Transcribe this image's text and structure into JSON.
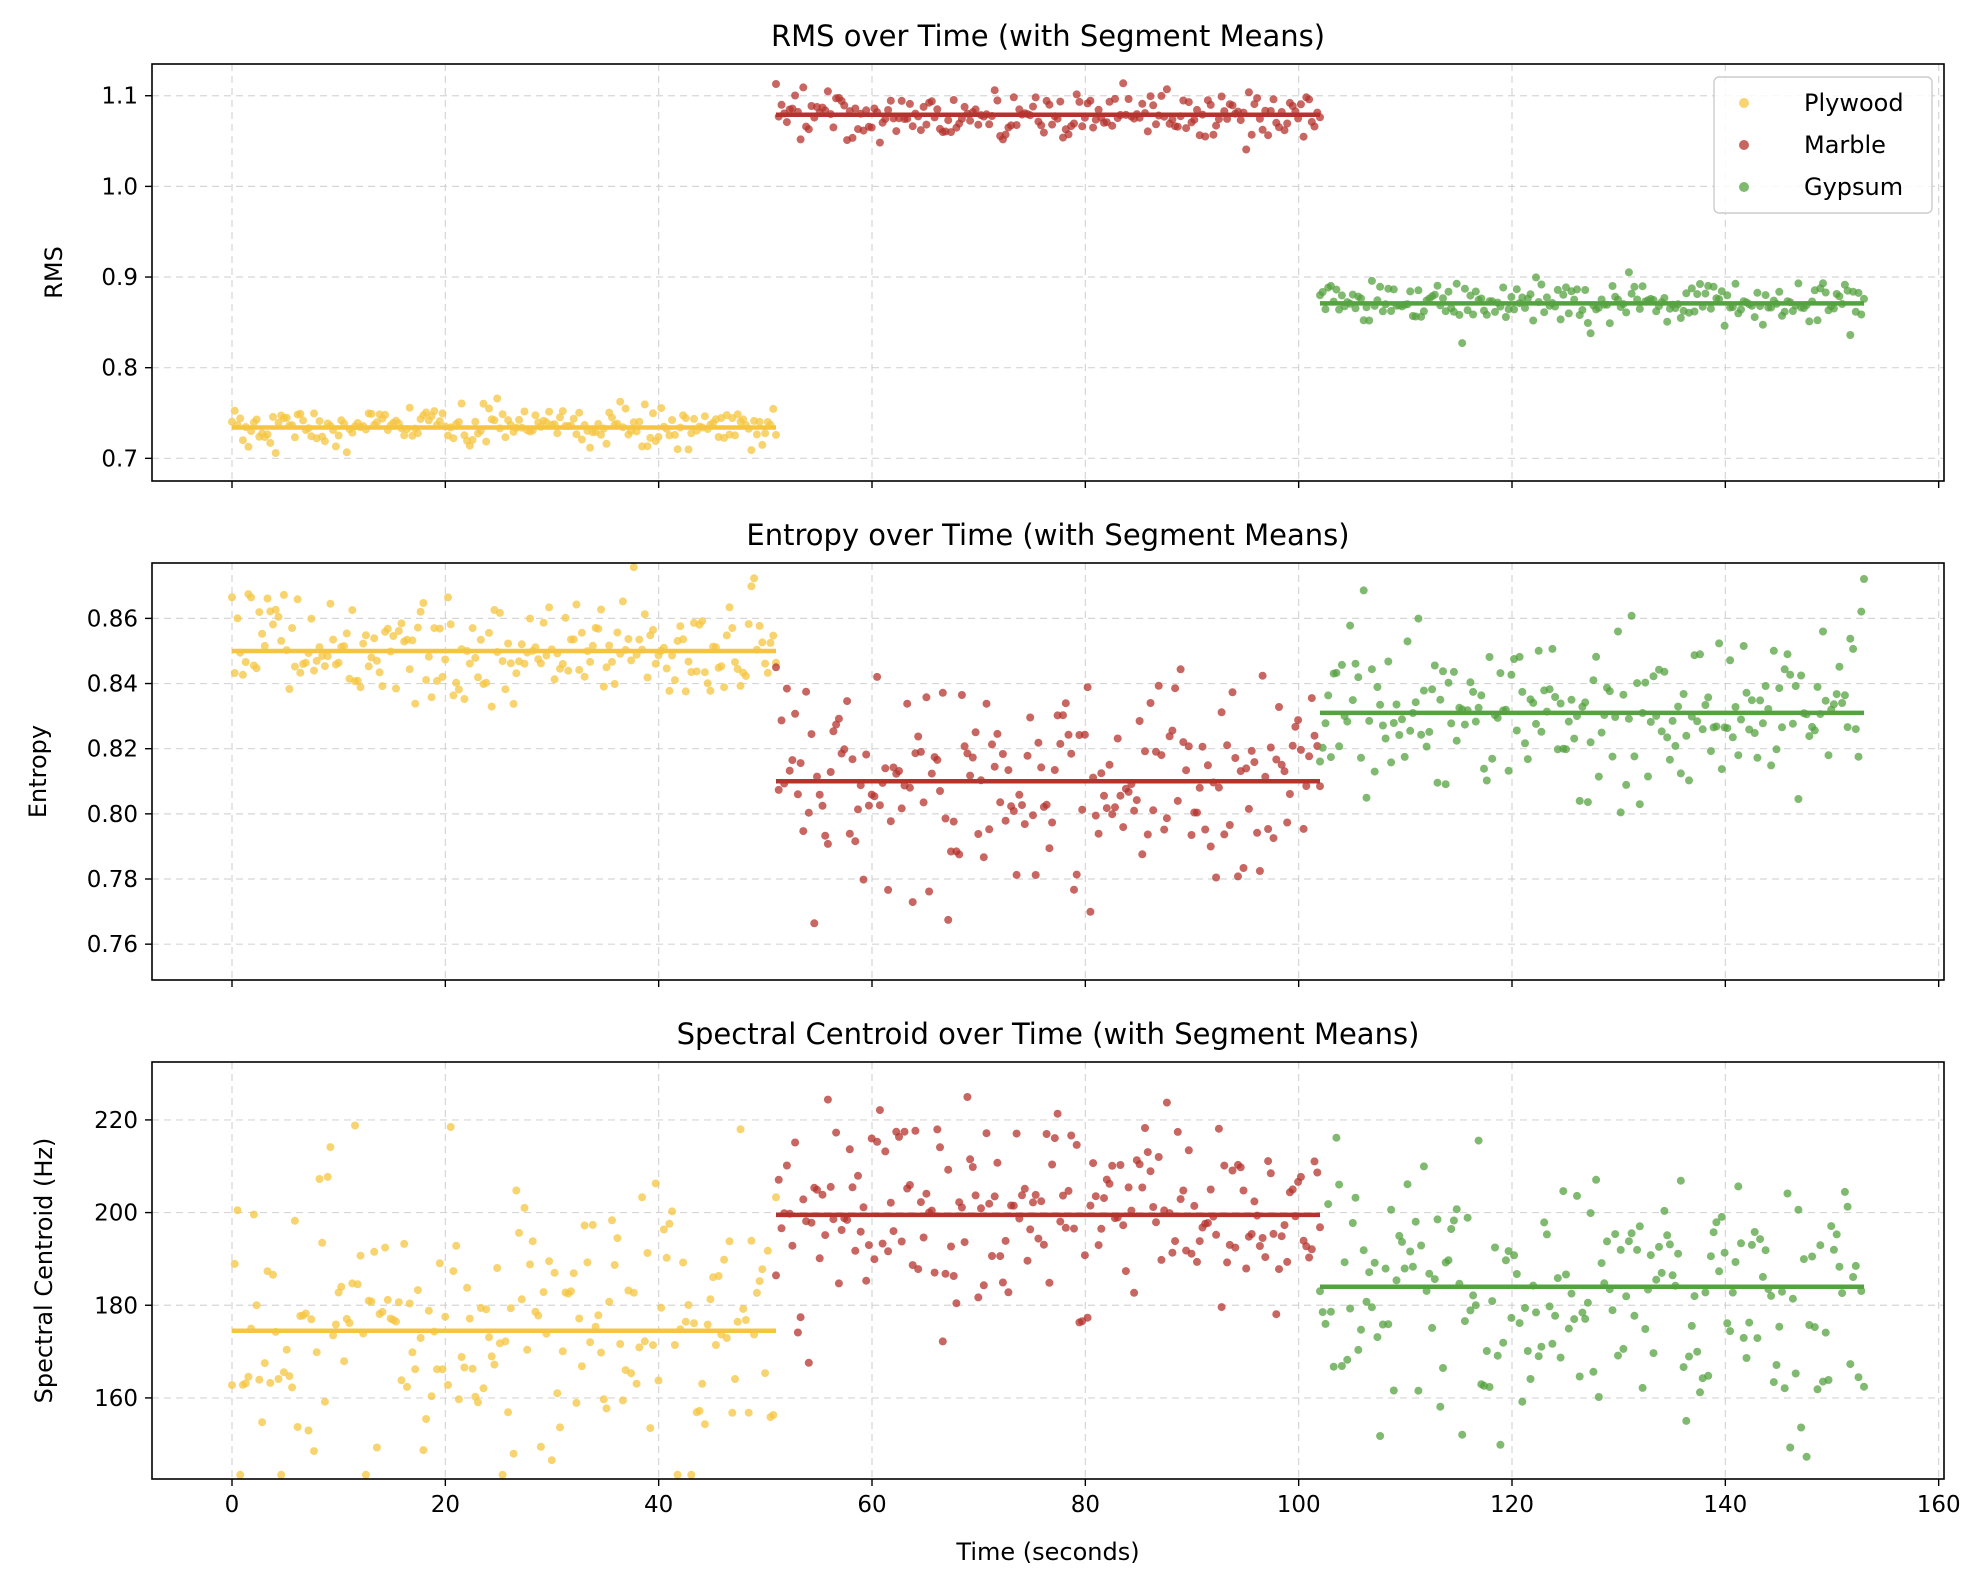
{
  "chart_data": {
    "type": "scatter",
    "layout": "3 stacked subplots sharing the x-axis",
    "x_axis": {
      "label": "Time (seconds)",
      "lim": [
        -7.5,
        160.5
      ],
      "ticks": [
        0,
        20,
        40,
        60,
        80,
        100,
        120,
        140,
        160
      ]
    },
    "segments": [
      {
        "name": "Plywood",
        "color": "#f5c542",
        "t_start": 0,
        "t_end": 51
      },
      {
        "name": "Marble",
        "color": "#b5332e",
        "t_start": 51,
        "t_end": 102
      },
      {
        "name": "Gypsum",
        "color": "#55a240",
        "t_start": 102,
        "t_end": 153
      }
    ],
    "legend": {
      "placement": "top-right of first subplot",
      "entries": [
        "Plywood",
        "Marble",
        "Gypsum"
      ]
    },
    "subplots": [
      {
        "title": "RMS over Time (with Segment Means)",
        "ylabel": "RMS",
        "ylim": [
          0.675,
          1.135
        ],
        "yticks": [
          0.7,
          0.8,
          0.9,
          1.0,
          1.1
        ],
        "ytick_labels": [
          "0.7",
          "0.8",
          "0.9",
          "1.0",
          "1.1"
        ],
        "grid": true,
        "segment_means": [
          0.734,
          1.079,
          0.871
        ],
        "noise_sd": [
          0.013,
          0.013,
          0.011
        ],
        "points_per_segment": 200
      },
      {
        "title": "Entropy over Time (with Segment Means)",
        "ylabel": "Entropy",
        "ylim": [
          0.749,
          0.877
        ],
        "yticks": [
          0.76,
          0.78,
          0.8,
          0.82,
          0.84,
          0.86
        ],
        "ytick_labels": [
          "0.76",
          "0.78",
          "0.80",
          "0.82",
          "0.84",
          "0.86"
        ],
        "grid": true,
        "segment_means": [
          0.85,
          0.81,
          0.831
        ],
        "noise_sd": [
          0.008,
          0.017,
          0.014
        ],
        "points_per_segment": 200
      },
      {
        "title": "Spectral Centroid over Time (with Segment Means)",
        "ylabel": "Spectral Centroid (Hz)",
        "ylim": [
          142.5,
          232.5
        ],
        "yticks": [
          160,
          180,
          200,
          220
        ],
        "ytick_labels": [
          "160",
          "180",
          "200",
          "220"
        ],
        "grid": true,
        "segment_means": [
          174.5,
          199.5,
          184.0
        ],
        "noise_sd": [
          14,
          11,
          13
        ],
        "points_per_segment": 200
      }
    ]
  }
}
